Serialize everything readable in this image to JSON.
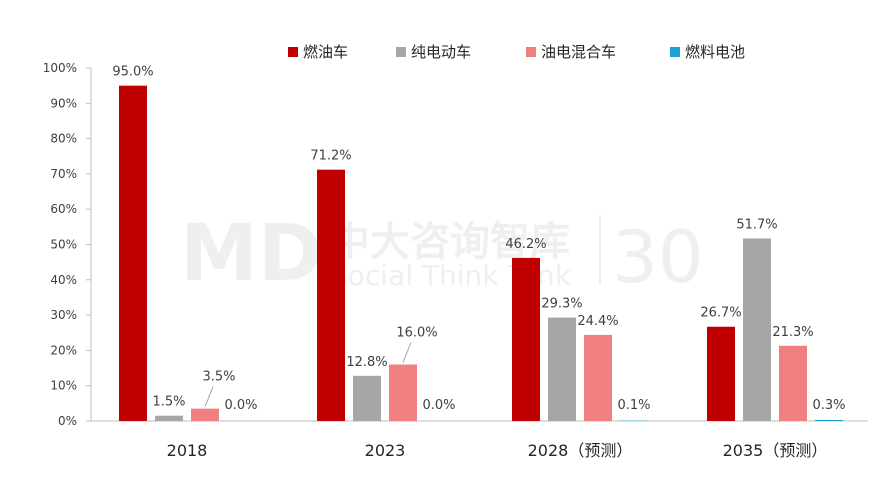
{
  "watermark": {
    "brand": "MD",
    "name": "中大咨询智库",
    "tagline": "Social Think Tank",
    "badge": "30"
  },
  "chart_data": {
    "type": "bar",
    "title": "",
    "xlabel": "",
    "ylabel": "",
    "ylim": [
      0,
      100
    ],
    "y_ticks": [
      "0%",
      "10%",
      "20%",
      "30%",
      "40%",
      "50%",
      "60%",
      "70%",
      "80%",
      "90%",
      "100%"
    ],
    "grid": false,
    "legend_position": "top",
    "categories": [
      "2018",
      "2023",
      "2028（预测）",
      "2035（预测）"
    ],
    "series": [
      {
        "name": "燃油车",
        "color": "#c00000",
        "values": [
          95.0,
          71.2,
          46.2,
          26.7
        ],
        "labels": [
          "95.0%",
          "71.2%",
          "46.2%",
          "26.7%"
        ]
      },
      {
        "name": "纯电动车",
        "color": "#a6a6a6",
        "values": [
          1.5,
          12.8,
          29.3,
          51.7
        ],
        "labels": [
          "1.5%",
          "12.8%",
          "29.3%",
          "51.7%"
        ]
      },
      {
        "name": "油电混合车",
        "color": "#f08080",
        "values": [
          3.5,
          16.0,
          24.4,
          21.3
        ],
        "labels": [
          "3.5%",
          "16.0%",
          "24.4%",
          "21.3%"
        ]
      },
      {
        "name": "燃料电池",
        "color": "#1fa0d6",
        "values": [
          0.0,
          0.0,
          0.1,
          0.3
        ],
        "labels": [
          "0.0%",
          "0.0%",
          "0.1%",
          "0.3%"
        ]
      }
    ]
  }
}
